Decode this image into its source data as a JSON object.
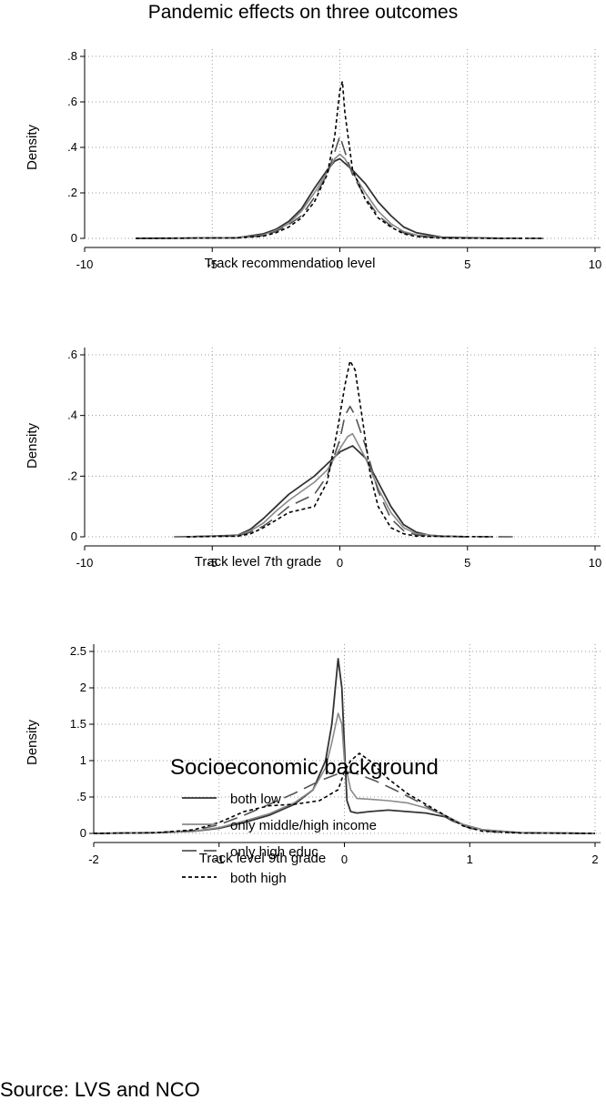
{
  "title": "Pandemic effects on three outcomes",
  "source": "Source: LVS and NCO",
  "legend": {
    "title": "Socioeconomic background",
    "position": "bottom"
  },
  "chart_data": [
    {
      "type": "line",
      "xlabel": "Track recommendation level",
      "ylabel": "Density",
      "xlim": [
        -10,
        10
      ],
      "ylim": [
        0,
        0.8
      ],
      "xticks": [
        -10,
        -5,
        0,
        5,
        10
      ],
      "xtick_labels": [
        "-10",
        "-5",
        "0",
        "5",
        "10"
      ],
      "yticks": [
        0,
        0.2,
        0.4,
        0.6,
        0.8
      ],
      "ytick_labels": [
        "0",
        ".2",
        ".4",
        ".6",
        ".8"
      ],
      "grid": true,
      "series": [
        {
          "name": "both low",
          "color": "#333333",
          "dash": "",
          "x": [
            -8,
            -4,
            -3,
            -2.5,
            -2,
            -1.5,
            -1,
            -0.5,
            -0.2,
            0,
            0.2,
            0.5,
            1,
            1.5,
            2,
            2.5,
            3,
            4,
            6.5
          ],
          "y": [
            0,
            0.003,
            0.02,
            0.04,
            0.075,
            0.13,
            0.22,
            0.3,
            0.34,
            0.35,
            0.33,
            0.3,
            0.24,
            0.16,
            0.1,
            0.05,
            0.025,
            0.005,
            0
          ]
        },
        {
          "name": "only middle/high income",
          "color": "#8a8a8a",
          "dash": "",
          "x": [
            -7,
            -4,
            -3,
            -2.5,
            -2,
            -1.5,
            -1,
            -0.5,
            -0.2,
            0,
            0.2,
            0.5,
            1,
            1.5,
            2,
            2.5,
            3,
            4,
            6.5
          ],
          "y": [
            0,
            0.003,
            0.015,
            0.035,
            0.065,
            0.12,
            0.2,
            0.29,
            0.35,
            0.37,
            0.35,
            0.29,
            0.2,
            0.12,
            0.065,
            0.03,
            0.015,
            0.003,
            0
          ]
        },
        {
          "name": "only high educ",
          "color": "#555555",
          "dash": "16 8",
          "x": [
            -7,
            -4,
            -3,
            -2.5,
            -2,
            -1.5,
            -1,
            -0.5,
            -0.2,
            0,
            0.2,
            0.5,
            1,
            1.5,
            2,
            2.5,
            3,
            4,
            8
          ],
          "y": [
            0,
            0.003,
            0.012,
            0.03,
            0.06,
            0.1,
            0.18,
            0.28,
            0.38,
            0.45,
            0.38,
            0.28,
            0.18,
            0.1,
            0.055,
            0.025,
            0.01,
            0.002,
            0
          ]
        },
        {
          "name": "both high",
          "color": "#000000",
          "dash": "4 3",
          "x": [
            -8,
            -4,
            -3,
            -2.5,
            -2,
            -1.5,
            -1,
            -0.5,
            -0.2,
            0,
            0.1,
            0.2,
            0.5,
            1,
            1.5,
            2,
            2.5,
            3,
            4,
            8
          ],
          "y": [
            0,
            0.002,
            0.01,
            0.025,
            0.05,
            0.09,
            0.16,
            0.28,
            0.45,
            0.65,
            0.69,
            0.55,
            0.3,
            0.17,
            0.09,
            0.05,
            0.02,
            0.008,
            0.001,
            0
          ]
        }
      ]
    },
    {
      "type": "line",
      "xlabel": "Track level 7th grade",
      "ylabel": "Density",
      "xlim": [
        -10,
        10
      ],
      "ylim": [
        0,
        0.6
      ],
      "xticks": [
        -10,
        -5,
        0,
        5,
        10
      ],
      "xtick_labels": [
        "-10",
        "-5",
        "0",
        "5",
        "10"
      ],
      "yticks": [
        0,
        0.2,
        0.4,
        0.6
      ],
      "ytick_labels": [
        "0",
        ".2",
        ".4",
        ".6"
      ],
      "grid": true,
      "series": [
        {
          "name": "both low",
          "color": "#333333",
          "dash": "",
          "x": [
            -6,
            -4,
            -3.5,
            -3,
            -2.5,
            -2,
            -1.5,
            -1,
            -0.5,
            0,
            0.5,
            1,
            1.5,
            2,
            2.5,
            3,
            3.5,
            4,
            5
          ],
          "y": [
            0,
            0.005,
            0.025,
            0.06,
            0.1,
            0.14,
            0.17,
            0.2,
            0.24,
            0.28,
            0.3,
            0.26,
            0.18,
            0.1,
            0.04,
            0.015,
            0.005,
            0.002,
            0
          ]
        },
        {
          "name": "only middle/high income",
          "color": "#8a8a8a",
          "dash": "",
          "x": [
            -6,
            -4,
            -3.5,
            -3,
            -2.5,
            -2,
            -1.5,
            -1,
            -0.5,
            0,
            0.3,
            0.5,
            1,
            1.5,
            2,
            2.5,
            3,
            4,
            5
          ],
          "y": [
            0,
            0.004,
            0.02,
            0.045,
            0.085,
            0.12,
            0.15,
            0.18,
            0.22,
            0.29,
            0.33,
            0.34,
            0.26,
            0.16,
            0.08,
            0.03,
            0.01,
            0.002,
            0
          ]
        },
        {
          "name": "only high educ",
          "color": "#555555",
          "dash": "16 8",
          "x": [
            -6.5,
            -4,
            -3.5,
            -3,
            -2.5,
            -2,
            -1.5,
            -1,
            -0.5,
            0,
            0.2,
            0.4,
            0.6,
            1,
            1.5,
            2,
            2.5,
            3,
            4,
            6.8
          ],
          "y": [
            0,
            0.003,
            0.015,
            0.035,
            0.065,
            0.1,
            0.12,
            0.14,
            0.2,
            0.32,
            0.4,
            0.43,
            0.4,
            0.3,
            0.15,
            0.06,
            0.02,
            0.006,
            0.001,
            0
          ]
        },
        {
          "name": "both high",
          "color": "#000000",
          "dash": "4 3",
          "x": [
            -6,
            -4,
            -3.5,
            -3,
            -2.5,
            -2,
            -1.5,
            -1,
            -0.5,
            -0.1,
            0.2,
            0.4,
            0.6,
            0.9,
            1.2,
            1.5,
            2,
            2.5,
            3,
            6
          ],
          "y": [
            0,
            0.002,
            0.01,
            0.03,
            0.055,
            0.08,
            0.09,
            0.1,
            0.18,
            0.35,
            0.5,
            0.58,
            0.55,
            0.38,
            0.2,
            0.1,
            0.03,
            0.01,
            0.002,
            0
          ]
        }
      ]
    },
    {
      "type": "line",
      "xlabel": "Track level 9th grade",
      "ylabel": "Density",
      "xlim": [
        -2,
        2
      ],
      "ylim": [
        0,
        2.5
      ],
      "xticks": [
        -2,
        -1,
        0,
        1,
        2
      ],
      "xtick_labels": [
        "-2",
        "-1",
        "0",
        "1",
        "2"
      ],
      "yticks": [
        0,
        0.5,
        1,
        1.5,
        2,
        2.5
      ],
      "ytick_labels": [
        "0",
        ".5",
        "1",
        "1.5",
        "2",
        "2.5"
      ],
      "grid": true,
      "series": [
        {
          "name": "both low",
          "color": "#333333",
          "dash": "",
          "x": [
            -2,
            -1.5,
            -1.2,
            -1,
            -0.8,
            -0.6,
            -0.4,
            -0.25,
            -0.15,
            -0.1,
            -0.05,
            -0.02,
            0,
            0.02,
            0.05,
            0.1,
            0.2,
            0.35,
            0.5,
            0.65,
            0.8,
            0.95,
            1.1,
            1.4,
            2
          ],
          "y": [
            0,
            0.01,
            0.03,
            0.07,
            0.15,
            0.25,
            0.4,
            0.6,
            1.0,
            1.5,
            2.4,
            2.0,
            1.2,
            0.45,
            0.3,
            0.28,
            0.3,
            0.32,
            0.3,
            0.28,
            0.23,
            0.12,
            0.05,
            0.01,
            0
          ]
        },
        {
          "name": "only middle/high income",
          "color": "#8a8a8a",
          "dash": "",
          "x": [
            -2,
            -1.5,
            -1.2,
            -1,
            -0.8,
            -0.6,
            -0.4,
            -0.25,
            -0.15,
            -0.1,
            -0.05,
            -0.02,
            0,
            0.05,
            0.1,
            0.2,
            0.35,
            0.5,
            0.65,
            0.8,
            0.95,
            1.1,
            1.4,
            2
          ],
          "y": [
            0,
            0.01,
            0.03,
            0.08,
            0.17,
            0.27,
            0.42,
            0.6,
            0.9,
            1.25,
            1.65,
            1.5,
            1.0,
            0.6,
            0.48,
            0.47,
            0.45,
            0.42,
            0.35,
            0.25,
            0.12,
            0.05,
            0.01,
            0
          ]
        },
        {
          "name": "only high educ",
          "color": "#555555",
          "dash": "16 8",
          "x": [
            -2,
            -1.5,
            -1.2,
            -1,
            -0.8,
            -0.6,
            -0.4,
            -0.2,
            -0.05,
            0,
            0.1,
            0.25,
            0.4,
            0.55,
            0.7,
            0.85,
            1.0,
            1.2,
            1.5,
            2
          ],
          "y": [
            0,
            0.01,
            0.04,
            0.12,
            0.25,
            0.4,
            0.55,
            0.72,
            0.82,
            0.85,
            0.82,
            0.72,
            0.6,
            0.47,
            0.33,
            0.18,
            0.07,
            0.02,
            0.005,
            0
          ]
        },
        {
          "name": "both high",
          "color": "#000000",
          "dash": "4 3",
          "x": [
            -2,
            -1.5,
            -1.2,
            -1,
            -0.8,
            -0.6,
            -0.4,
            -0.2,
            -0.05,
            0,
            0.05,
            0.12,
            0.2,
            0.35,
            0.5,
            0.65,
            0.8,
            0.95,
            1.1,
            1.4,
            2
          ],
          "y": [
            0,
            0.01,
            0.05,
            0.15,
            0.3,
            0.38,
            0.4,
            0.45,
            0.6,
            0.85,
            1.0,
            1.1,
            1.0,
            0.75,
            0.55,
            0.4,
            0.25,
            0.1,
            0.03,
            0.005,
            0
          ]
        }
      ]
    }
  ]
}
